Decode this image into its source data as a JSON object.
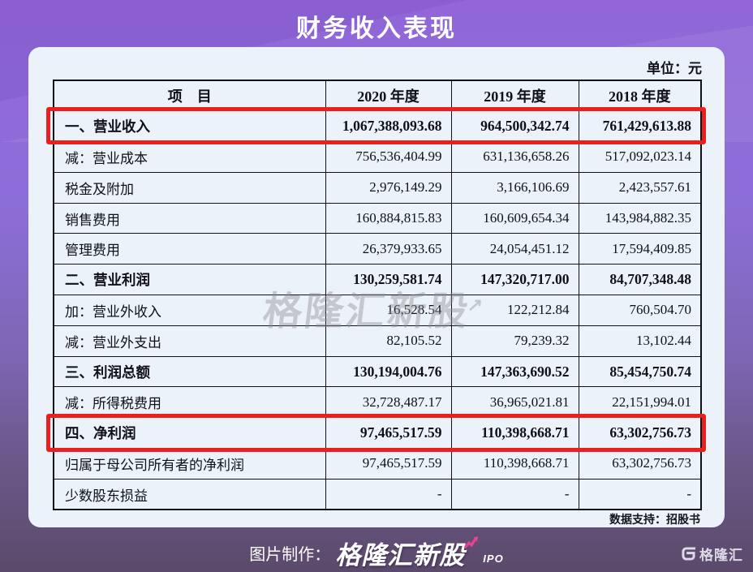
{
  "title": "财务收入表现",
  "unit_label": "单位：元",
  "watermark": "格隆汇新股",
  "table": {
    "headers": [
      "项　目",
      "2020 年度",
      "2019 年度",
      "2018 年度"
    ],
    "rows": [
      {
        "label": "一、营业收入",
        "values": [
          "1,067,388,093.68",
          "964,500,342.74",
          "761,429,613.88"
        ],
        "bold": true,
        "highlight": true
      },
      {
        "label": "减：营业成本",
        "values": [
          "756,536,404.99",
          "631,136,658.26",
          "517,092,023.14"
        ],
        "bold": false
      },
      {
        "label": "税金及附加",
        "values": [
          "2,976,149.29",
          "3,166,106.69",
          "2,423,557.61"
        ],
        "bold": false
      },
      {
        "label": "销售费用",
        "values": [
          "160,884,815.83",
          "160,609,654.34",
          "143,984,882.35"
        ],
        "bold": false
      },
      {
        "label": "管理费用",
        "values": [
          "26,379,933.65",
          "24,054,451.12",
          "17,594,409.85"
        ],
        "bold": false
      },
      {
        "label": "二、营业利润",
        "values": [
          "130,259,581.74",
          "147,320,717.00",
          "84,707,348.48"
        ],
        "bold": true
      },
      {
        "label": "加：营业外收入",
        "values": [
          "16,528.54",
          "122,212.84",
          "760,504.70"
        ],
        "bold": false
      },
      {
        "label": "减：营业外支出",
        "values": [
          "82,105.52",
          "79,239.32",
          "13,102.44"
        ],
        "bold": false
      },
      {
        "label": "三、利润总额",
        "values": [
          "130,194,004.76",
          "147,363,690.52",
          "85,454,750.74"
        ],
        "bold": true
      },
      {
        "label": "减：所得税费用",
        "values": [
          "32,728,487.17",
          "36,965,021.81",
          "22,151,994.01"
        ],
        "bold": false
      },
      {
        "label": "四、净利润",
        "values": [
          "97,465,517.59",
          "110,398,668.71",
          "63,302,756.73"
        ],
        "bold": true,
        "highlight": true
      },
      {
        "label": "归属于母公司所有者的净利润",
        "values": [
          "97,465,517.59",
          "110,398,668.71",
          "63,302,756.73"
        ],
        "bold": false
      },
      {
        "label": "少数股东损益",
        "values": [
          "-",
          "-",
          "-"
        ],
        "bold": false
      }
    ]
  },
  "data_support": "数据支持：招股书",
  "footer": {
    "made_by_label": "图片制作：",
    "brand": "格隆汇新股",
    "brand_sub": "IPO",
    "logo_text": "格隆汇"
  },
  "colors": {
    "background_top": "#9166d8",
    "background_bottom": "#5b4a6b",
    "card": "#ecf2fa",
    "highlight_red": "#e8201f",
    "brand_pink": "#ee3f90"
  }
}
